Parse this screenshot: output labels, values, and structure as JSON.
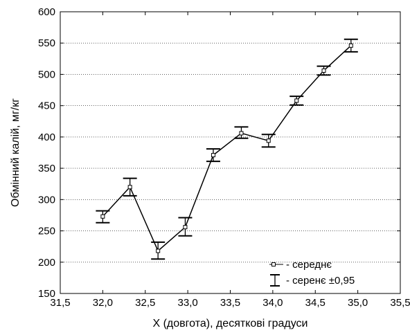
{
  "chart_data": {
    "type": "line",
    "title": "",
    "xlabel": "X (довгота), десяткові градуси",
    "ylabel": "Обмінний калій, мг/кг",
    "xlim": [
      31.5,
      35.5
    ],
    "ylim": [
      150,
      600
    ],
    "x_ticks": [
      31.5,
      32.0,
      32.5,
      33.0,
      33.5,
      34.0,
      34.5,
      35.0,
      35.5
    ],
    "x_tick_labels": [
      "31,5",
      "32,0",
      "32,5",
      "33,0",
      "33,5",
      "34,0",
      "34,5",
      "35,0",
      "35,5"
    ],
    "y_ticks": [
      150,
      200,
      250,
      300,
      350,
      400,
      450,
      500,
      550,
      600
    ],
    "y_tick_labels": [
      "150",
      "200",
      "250",
      "300",
      "350",
      "400",
      "450",
      "500",
      "550",
      "600"
    ],
    "grid": "horizontal dotted",
    "legend_position": "bottom-right",
    "series": [
      {
        "name": "- середнє",
        "x": [
          32.0,
          32.32,
          32.65,
          32.97,
          33.3,
          33.63,
          33.95,
          34.28,
          34.6,
          34.92
        ],
        "y": [
          273,
          320,
          218,
          256,
          371,
          406,
          394,
          458,
          506,
          546
        ],
        "err_low": [
          263,
          306,
          205,
          242,
          361,
          398,
          384,
          451,
          499,
          536
        ],
        "err_high": [
          282,
          334,
          232,
          271,
          381,
          416,
          404,
          465,
          513,
          556
        ]
      }
    ],
    "error_bar_label": "- серенє ±0,95"
  }
}
